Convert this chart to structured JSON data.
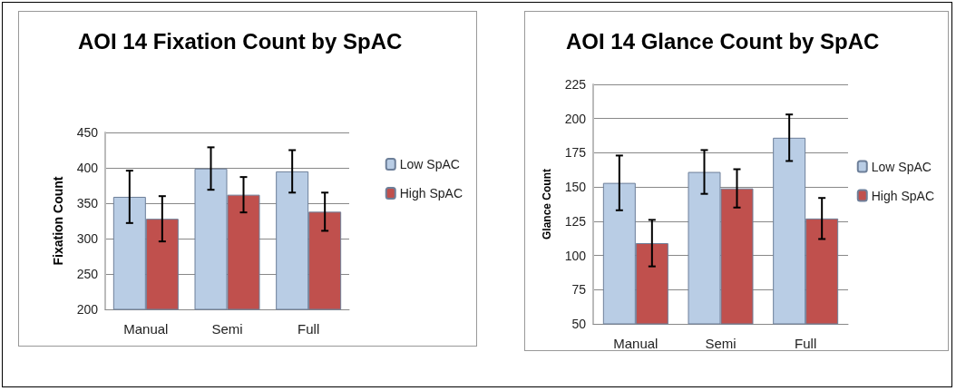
{
  "chart_data": [
    {
      "type": "bar",
      "title": "AOI 14 Fixation Count by SpAC",
      "ylabel": "Fixation Count",
      "categories": [
        "Manual",
        "Semi",
        "Full"
      ],
      "series": [
        {
          "name": "Low SpAC",
          "color": "#b9cde5",
          "values": [
            359,
            399,
            395
          ],
          "errors": [
            37,
            30,
            30
          ]
        },
        {
          "name": "High SpAC",
          "color": "#c0504d",
          "values": [
            328,
            362,
            338
          ],
          "errors": [
            32,
            25,
            27
          ]
        }
      ],
      "ylim": [
        200,
        450
      ],
      "yticks": [
        200,
        250,
        300,
        350,
        400,
        450
      ],
      "grid": "y",
      "legend": "right"
    },
    {
      "type": "bar",
      "title": "AOI 14 Glance Count by SpAC",
      "ylabel": "Glance Count",
      "categories": [
        "Manual",
        "Semi",
        "Full"
      ],
      "series": [
        {
          "name": "Low SpAC",
          "color": "#b9cde5",
          "values": [
            153,
            161,
            186
          ],
          "errors": [
            20,
            16,
            17
          ]
        },
        {
          "name": "High SpAC",
          "color": "#c0504d",
          "values": [
            109,
            149,
            127
          ],
          "errors": [
            17,
            14,
            15
          ]
        }
      ],
      "ylim": [
        50,
        225
      ],
      "yticks": [
        50,
        75,
        100,
        125,
        150,
        175,
        200,
        225
      ],
      "grid": "y",
      "legend": "right"
    }
  ]
}
